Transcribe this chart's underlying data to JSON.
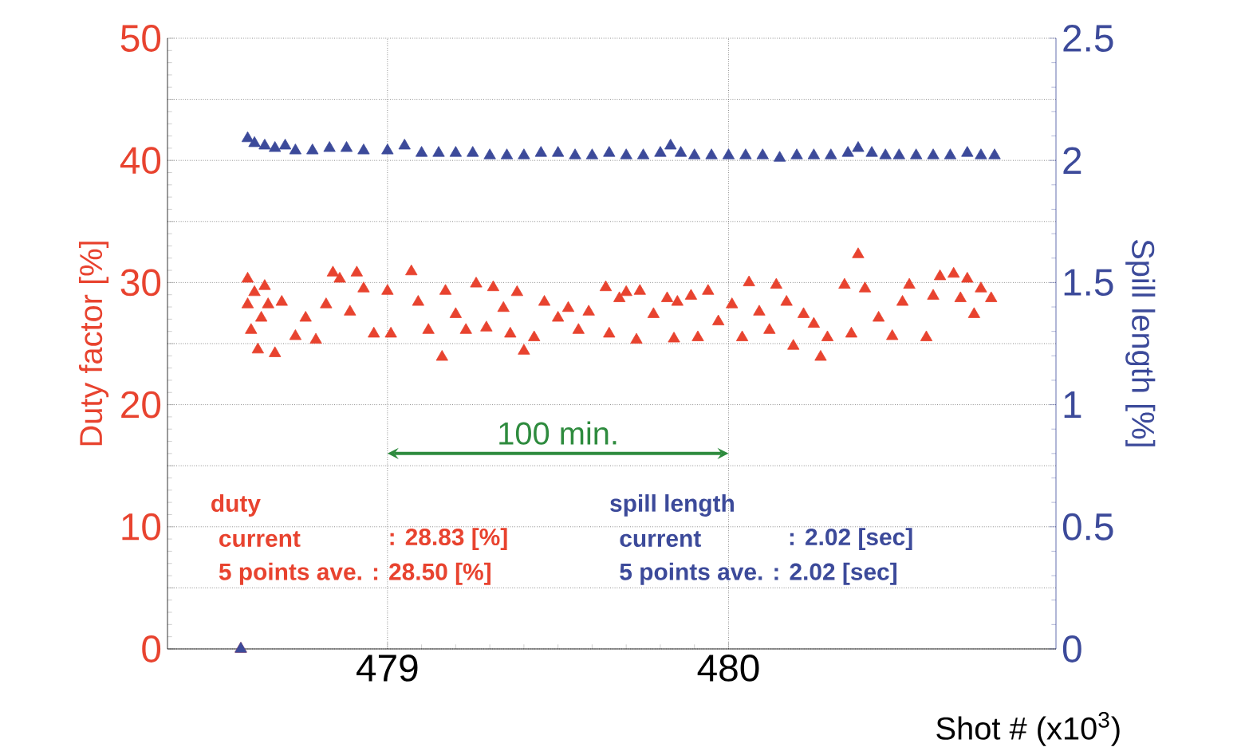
{
  "chart_data": {
    "type": "scatter",
    "xlabel": "Shot # (x10$^{3}$)",
    "ylabel": "Duty factor [%]",
    "y2label": "Spill length [%]",
    "xlim": [
      478.355,
      480.96
    ],
    "xticks": [
      479,
      480
    ],
    "ylim": [
      0,
      50
    ],
    "yticks": [
      0,
      {
        "value": 5,
        "label": null
      },
      10,
      {
        "value": 15,
        "label": null
      },
      20,
      {
        "value": 25,
        "label": null
      },
      30,
      {
        "value": 35,
        "label": null
      },
      40,
      {
        "value": 45,
        "label": null
      },
      50
    ],
    "y2lim": [
      0,
      2.5
    ],
    "y2ticks": [
      0,
      0.5,
      1,
      1.5,
      2,
      2.5
    ],
    "grid": true,
    "marker": "triangle",
    "annotations": [
      "duty",
      "current",
      ": 28.83 [%]",
      "5 points ave. : 28.50 [%]",
      "spill length",
      "current",
      ": 2.02 [sec]",
      "5 points ave. : 2.02 [sec]",
      "100 min."
    ],
    "series": [
      {
        "color": "#e8432f",
        "x": [
          478.57,
          478.59,
          478.59,
          478.6,
          478.62,
          478.64,
          478.65,
          478.63,
          478.67,
          478.61,
          478.69,
          478.73,
          478.76,
          478.79,
          478.82,
          478.84,
          478.86,
          478.89,
          478.91,
          478.93,
          478.96,
          479.0,
          479.01,
          479.07,
          479.09,
          479.12,
          479.16,
          479.17,
          479.2,
          479.23,
          479.26,
          479.29,
          479.31,
          479.34,
          479.36,
          479.38,
          479.4,
          479.43,
          479.46,
          479.5,
          479.53,
          479.56,
          479.59,
          479.64,
          479.65,
          479.68,
          479.7,
          479.73,
          479.74,
          479.78,
          479.82,
          479.84,
          479.85,
          479.89,
          479.91,
          479.94,
          479.97,
          480.01,
          480.04,
          480.06,
          480.09,
          480.12,
          480.14,
          480.17,
          480.19,
          480.22,
          480.25,
          480.27,
          480.29,
          480.34,
          480.36,
          480.38,
          480.4,
          480.44,
          480.48,
          480.51,
          480.53,
          480.58,
          480.6,
          480.62,
          480.66,
          480.68,
          480.7,
          480.72,
          480.74,
          480.77
        ],
        "values": [
          0,
          30.3,
          28.2,
          26.1,
          24.5,
          29.7,
          28.2,
          27.1,
          24.2,
          29.2,
          28.4,
          25.6,
          27.1,
          25.3,
          28.2,
          30.8,
          30.3,
          27.6,
          30.8,
          29.5,
          25.8,
          29.3,
          25.8,
          30.9,
          28.4,
          26.1,
          23.9,
          29.3,
          27.4,
          26.1,
          29.9,
          26.3,
          29.6,
          27.9,
          25.8,
          29.2,
          24.4,
          25.5,
          28.4,
          27.1,
          27.9,
          26.1,
          27.6,
          29.6,
          25.8,
          28.7,
          29.2,
          25.3,
          29.3,
          27.4,
          28.7,
          25.4,
          28.4,
          28.9,
          25.5,
          29.3,
          26.8,
          28.2,
          25.5,
          30.0,
          27.6,
          26.1,
          29.8,
          28.4,
          24.8,
          27.4,
          26.6,
          23.9,
          25.5,
          29.8,
          25.8,
          32.3,
          29.5,
          27.1,
          25.6,
          28.4,
          29.8,
          25.5,
          28.9,
          30.5,
          30.7,
          28.7,
          30.3,
          27.4,
          29.5,
          28.7
        ]
      },
      {
        "color": "#3c4a9a",
        "axis": "y2",
        "x": [
          478.57,
          478.59,
          478.61,
          478.64,
          478.67,
          478.7,
          478.73,
          478.78,
          478.83,
          478.88,
          478.93,
          479.0,
          479.05,
          479.1,
          479.15,
          479.2,
          479.25,
          479.3,
          479.35,
          479.4,
          479.45,
          479.5,
          479.55,
          479.6,
          479.65,
          479.7,
          479.75,
          479.8,
          479.83,
          479.86,
          479.9,
          479.95,
          480.0,
          480.05,
          480.1,
          480.15,
          480.2,
          480.25,
          480.3,
          480.35,
          480.38,
          480.42,
          480.46,
          480.5,
          480.55,
          480.6,
          480.65,
          480.7,
          480.74,
          480.78
        ],
        "values": [
          0,
          2.09,
          2.07,
          2.06,
          2.05,
          2.06,
          2.04,
          2.04,
          2.05,
          2.05,
          2.04,
          2.04,
          2.06,
          2.03,
          2.03,
          2.03,
          2.03,
          2.02,
          2.02,
          2.02,
          2.03,
          2.03,
          2.02,
          2.02,
          2.03,
          2.02,
          2.02,
          2.03,
          2.06,
          2.03,
          2.02,
          2.02,
          2.02,
          2.02,
          2.02,
          2.01,
          2.02,
          2.02,
          2.02,
          2.03,
          2.05,
          2.03,
          2.02,
          2.02,
          2.02,
          2.02,
          2.02,
          2.03,
          2.02,
          2.02
        ]
      }
    ]
  }
}
